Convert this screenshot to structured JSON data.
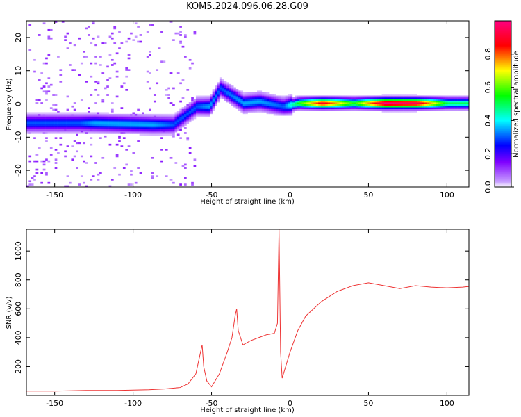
{
  "figure_title": "KOM5.2024.096.06.28.G09",
  "chart_data": [
    {
      "type": "heatmap",
      "xlabel": "Height of straight line (km)",
      "ylabel": "Frequency (Hz)",
      "xlim": [
        -168,
        114
      ],
      "ylim": [
        -25,
        25
      ],
      "xticks": [
        -150,
        -100,
        -50,
        0,
        50,
        100
      ],
      "yticks": [
        -20,
        -10,
        0,
        10,
        20
      ],
      "colorbar": {
        "label": "Normalized spectral amplitude",
        "range": [
          0,
          1
        ],
        "ticks": [
          "0.0",
          "0.2",
          "0.4",
          "0.6",
          "0.8"
        ],
        "colormap": "hsv-rainbow"
      },
      "ridge": [
        {
          "x": -135,
          "freq": -6,
          "amp": 0.3
        },
        {
          "x": -125,
          "freq": -6,
          "amp": 0.35
        },
        {
          "x": -88,
          "freq": -6.5,
          "amp": 0.35
        },
        {
          "x": -75,
          "freq": -6.5,
          "amp": 0.3
        },
        {
          "x": -60,
          "freq": -1,
          "amp": 0.3
        },
        {
          "x": -52,
          "freq": -1,
          "amp": 0.35
        },
        {
          "x": -45,
          "freq": 4.5,
          "amp": 0.3
        },
        {
          "x": -30,
          "freq": 0,
          "amp": 0.35
        },
        {
          "x": -20,
          "freq": 0.5,
          "amp": 0.35
        },
        {
          "x": -5,
          "freq": -1,
          "amp": 0.3
        },
        {
          "x": 5,
          "freq": 0,
          "amp": 0.55
        },
        {
          "x": 20,
          "freq": 0,
          "amp": 0.9
        },
        {
          "x": 40,
          "freq": 0,
          "amp": 0.55
        },
        {
          "x": 60,
          "freq": 0,
          "amp": 1.0
        },
        {
          "x": 80,
          "freq": 0,
          "amp": 0.95
        },
        {
          "x": 100,
          "freq": 0,
          "amp": 0.5
        }
      ]
    },
    {
      "type": "line",
      "xlabel": "Height of straight line (km)",
      "ylabel": "SNR (v/v)",
      "xlim": [
        -168,
        114
      ],
      "ylim": [
        0,
        1150
      ],
      "xticks": [
        -150,
        -100,
        -50,
        0,
        50,
        100
      ],
      "yticks": [
        200,
        400,
        600,
        800,
        1000
      ],
      "color": "#ee3333",
      "series": [
        {
          "x": [
            -168,
            -150,
            -130,
            -110,
            -90,
            -80,
            -70,
            -65,
            -60,
            -57,
            -56,
            -55,
            -53,
            -50,
            -45,
            -40,
            -37,
            -35,
            -34,
            -33,
            -30,
            -25,
            -20,
            -15,
            -10,
            -8,
            -7,
            -6,
            -5,
            0,
            5,
            10,
            20,
            30,
            40,
            50,
            60,
            70,
            80,
            90,
            100,
            110,
            114
          ],
          "y": [
            30,
            30,
            35,
            35,
            40,
            45,
            55,
            80,
            150,
            300,
            350,
            200,
            100,
            60,
            150,
            300,
            400,
            550,
            600,
            450,
            350,
            380,
            400,
            420,
            430,
            500,
            1150,
            300,
            120,
            300,
            450,
            550,
            650,
            720,
            760,
            780,
            760,
            740,
            760,
            750,
            745,
            750,
            755
          ]
        }
      ]
    }
  ]
}
